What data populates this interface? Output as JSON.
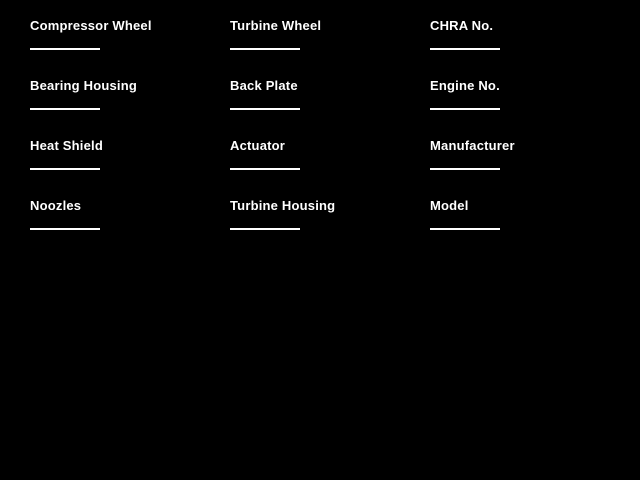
{
  "theme": {
    "background_color": "#000000",
    "text_color": "#ffffff",
    "underline_color": "#ffffff"
  },
  "form": {
    "columns": [
      {
        "fields": [
          {
            "label": "Compressor Wheel",
            "value": ""
          },
          {
            "label": "Bearing Housing",
            "value": ""
          },
          {
            "label": "Heat Shield",
            "value": ""
          },
          {
            "label": "Noozles",
            "value": ""
          }
        ]
      },
      {
        "fields": [
          {
            "label": "Turbine Wheel",
            "value": ""
          },
          {
            "label": "Back Plate",
            "value": ""
          },
          {
            "label": "Actuator",
            "value": ""
          },
          {
            "label": "Turbine Housing",
            "value": ""
          }
        ]
      },
      {
        "fields": [
          {
            "label": "CHRA No.",
            "value": ""
          },
          {
            "label": "Engine No.",
            "value": ""
          },
          {
            "label": "Manufacturer",
            "value": ""
          },
          {
            "label": "Model",
            "value": ""
          }
        ]
      }
    ]
  }
}
